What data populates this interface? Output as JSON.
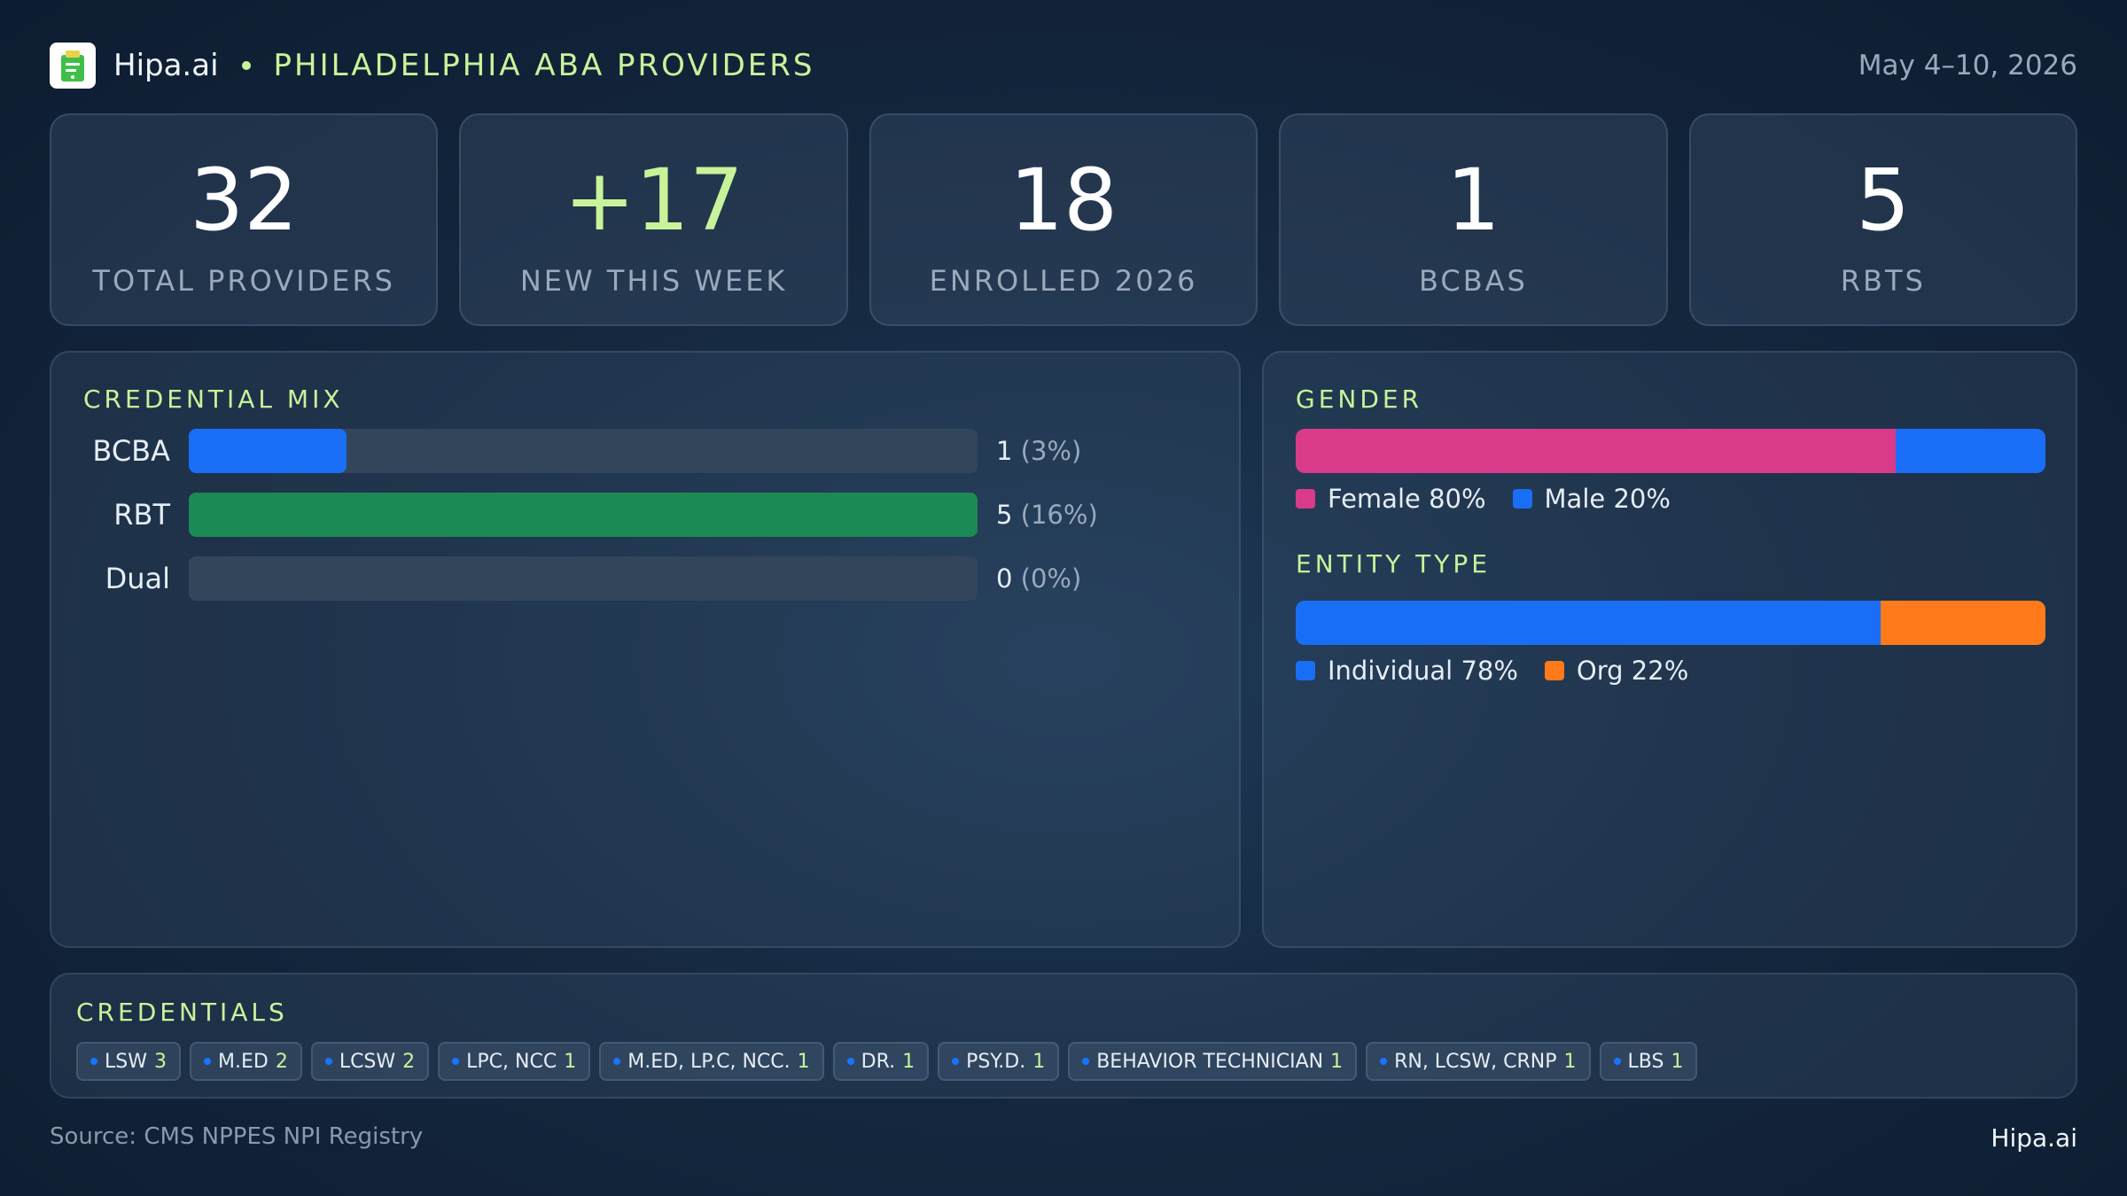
{
  "header": {
    "brand": "Hipa.ai",
    "region": "PHILADELPHIA ABA PROVIDERS",
    "date_range": "May 4–10, 2026",
    "logo_icon": "clipboard-icon"
  },
  "stats": [
    {
      "value": "32",
      "label": "TOTAL PROVIDERS"
    },
    {
      "value": "+17",
      "label": "NEW THIS WEEK"
    },
    {
      "value": "18",
      "label": "ENROLLED 2026"
    },
    {
      "value": "1",
      "label": "BCBAS"
    },
    {
      "value": "5",
      "label": "RBTS"
    }
  ],
  "credential_mix": {
    "title": "CREDENTIAL MIX",
    "rows": [
      {
        "label": "BCBA",
        "count": "1",
        "pct": "(3%)",
        "fraction": 0.2,
        "color": "#1a6ef5"
      },
      {
        "label": "RBT",
        "count": "5",
        "pct": "(16%)",
        "fraction": 1.0,
        "color": "#1b8a55"
      },
      {
        "label": "Dual",
        "count": "0",
        "pct": "(0%)",
        "fraction": 0.0,
        "color": "#1a6ef5"
      }
    ]
  },
  "gender": {
    "title": "GENDER",
    "segments": [
      {
        "label": "Female 80%",
        "fraction": 0.8,
        "color": "#d93a8a"
      },
      {
        "label": "Male 20%",
        "fraction": 0.2,
        "color": "#1a6ef5"
      }
    ]
  },
  "entity_type": {
    "title": "ENTITY TYPE",
    "segments": [
      {
        "label": "Individual 78%",
        "fraction": 0.78,
        "color": "#1a6ef5"
      },
      {
        "label": "Org 22%",
        "fraction": 0.22,
        "color": "#ff7a1a"
      }
    ]
  },
  "credentials": {
    "title": "CREDENTIALS",
    "chips": [
      {
        "name": "LSW",
        "count": "3"
      },
      {
        "name": "M.ED",
        "count": "2"
      },
      {
        "name": "LCSW",
        "count": "2"
      },
      {
        "name": "LPC, NCC",
        "count": "1"
      },
      {
        "name": "M.ED, LP.C, NCC.",
        "count": "1"
      },
      {
        "name": "DR.",
        "count": "1"
      },
      {
        "name": "PSY.D.",
        "count": "1"
      },
      {
        "name": "BEHAVIOR TECHNICIAN",
        "count": "1"
      },
      {
        "name": "RN, LCSW, CRNP",
        "count": "1"
      },
      {
        "name": "LBS",
        "count": "1"
      }
    ]
  },
  "footer": {
    "source": "Source: CMS NPPES NPI Registry",
    "brand": "Hipa.ai"
  }
}
